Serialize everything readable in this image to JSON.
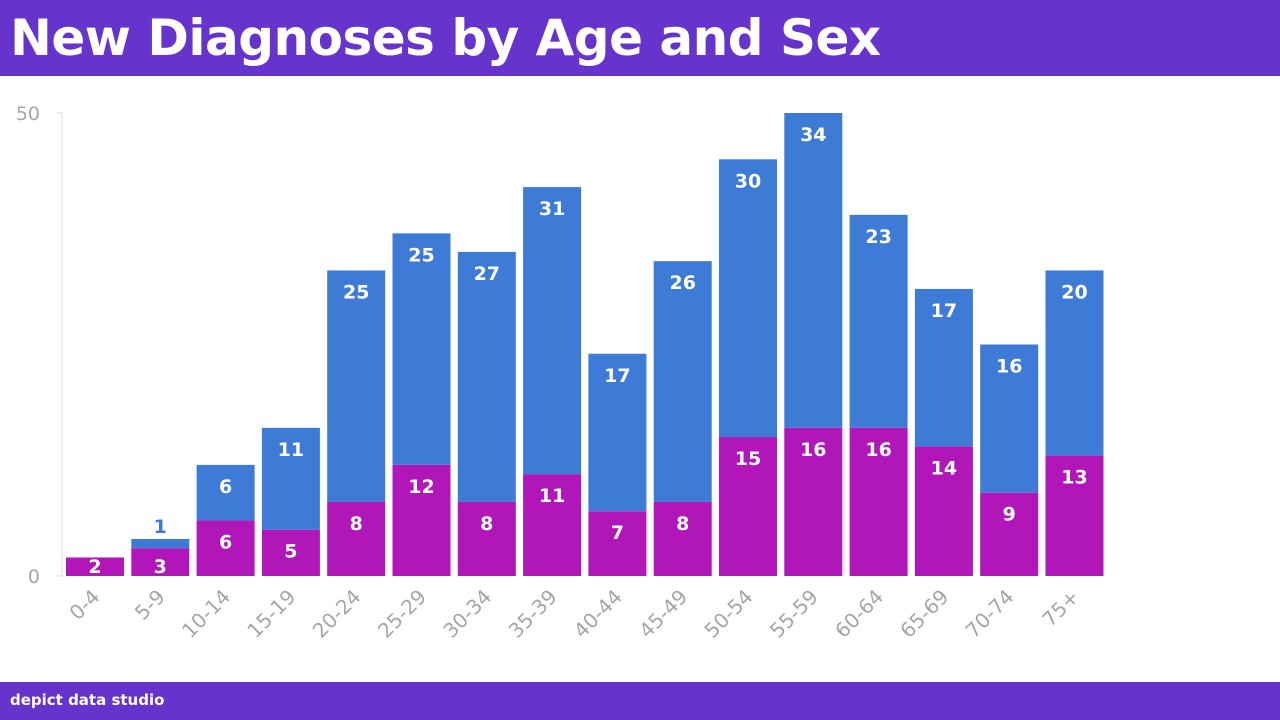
{
  "header": {
    "title": "New Diagnoses by Age and Sex"
  },
  "footer": {
    "brand": "depict data studio"
  },
  "colors": {
    "brand_bar": "#6633cc",
    "series_bottom": "#b016b8",
    "series_top": "#3e7bd6",
    "axis": "#d9d9d9",
    "axis_text": "#a6a6a6"
  },
  "chart_data": {
    "type": "bar",
    "stacked": true,
    "title": "New Diagnoses by Age and Sex",
    "xlabel": "",
    "ylabel": "",
    "ylim": [
      0,
      50
    ],
    "yticks": [
      0,
      50
    ],
    "grid": false,
    "legend": "none",
    "categories": [
      "0-4",
      "5-9",
      "10-14",
      "15-19",
      "20-24",
      "25-29",
      "30-34",
      "35-39",
      "40-44",
      "45-49",
      "50-54",
      "55-59",
      "60-64",
      "65-69",
      "70-74",
      "75+"
    ],
    "series": [
      {
        "color": "#b016b8",
        "values": [
          2,
          3,
          6,
          5,
          8,
          12,
          8,
          11,
          7,
          8,
          15,
          16,
          16,
          14,
          9,
          13
        ]
      },
      {
        "color": "#3e7bd6",
        "values": [
          0,
          1,
          6,
          11,
          25,
          25,
          27,
          31,
          17,
          26,
          30,
          34,
          23,
          17,
          16,
          20
        ]
      }
    ],
    "data_labels": true
  }
}
